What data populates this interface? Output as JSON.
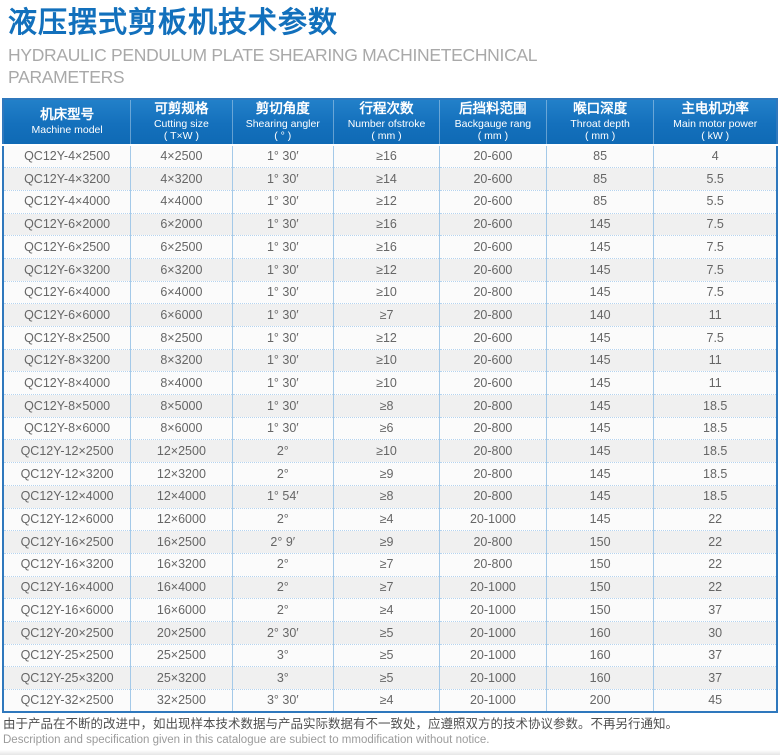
{
  "page": {
    "title": "液压摆式剪板机技术参数",
    "subtitle": "HYDRAULIC PENDULUM PLATE SHEARING MACHINETECHNICAL PARAMETERS"
  },
  "colors": {
    "title_blue": "#1270bc",
    "header_blue": "#1470bc",
    "table_border_blue": "#2f78bd",
    "column_divider_blue": "#a4c9e8",
    "row_alt_gray": "#f0f0f0",
    "body_text_gray": "#666666",
    "subtitle_gray": "#a9a9a9"
  },
  "table": {
    "columns": [
      {
        "zh": "机床型号",
        "en": "Machine model",
        "unit": ""
      },
      {
        "zh": "可剪规格",
        "en": "Cutting size",
        "unit": "( T×W )"
      },
      {
        "zh": "剪切角度",
        "en": "Shearing angler",
        "unit": "( ° )"
      },
      {
        "zh": "行程次数",
        "en": "Number ofstroke",
        "unit": "( mm )"
      },
      {
        "zh": "后挡料范围",
        "en": "Backgauge rang",
        "unit": "( mm )"
      },
      {
        "zh": "喉口深度",
        "en": "Throat depth",
        "unit": "( mm )"
      },
      {
        "zh": "主电机功率",
        "en": "Main motor power",
        "unit": "( kW )"
      }
    ],
    "rows": [
      [
        "QC12Y-4×2500",
        "4×2500",
        "1° 30′",
        "≥16",
        "20-600",
        "85",
        "4"
      ],
      [
        "QC12Y-4×3200",
        "4×3200",
        "1° 30′",
        "≥14",
        "20-600",
        "85",
        "5.5"
      ],
      [
        "QC12Y-4×4000",
        "4×4000",
        "1° 30′",
        "≥12",
        "20-600",
        "85",
        "5.5"
      ],
      [
        "QC12Y-6×2000",
        "6×2000",
        "1° 30′",
        "≥16",
        "20-600",
        "145",
        "7.5"
      ],
      [
        "QC12Y-6×2500",
        "6×2500",
        "1° 30′",
        "≥16",
        "20-600",
        "145",
        "7.5"
      ],
      [
        "QC12Y-6×3200",
        "6×3200",
        "1° 30′",
        "≥12",
        "20-600",
        "145",
        "7.5"
      ],
      [
        "QC12Y-6×4000",
        "6×4000",
        "1° 30′",
        "≥10",
        "20-800",
        "145",
        "7.5"
      ],
      [
        "QC12Y-6×6000",
        "6×6000",
        "1° 30′",
        "≥7",
        "20-800",
        "140",
        "11"
      ],
      [
        "QC12Y-8×2500",
        "8×2500",
        "1° 30′",
        "≥12",
        "20-600",
        "145",
        "7.5"
      ],
      [
        "QC12Y-8×3200",
        "8×3200",
        "1° 30′",
        "≥10",
        "20-600",
        "145",
        "11"
      ],
      [
        "QC12Y-8×4000",
        "8×4000",
        "1° 30′",
        "≥10",
        "20-600",
        "145",
        "11"
      ],
      [
        "QC12Y-8×5000",
        "8×5000",
        "1° 30′",
        "≥8",
        "20-800",
        "145",
        "18.5"
      ],
      [
        "QC12Y-8×6000",
        "8×6000",
        "1° 30′",
        "≥6",
        "20-800",
        "145",
        "18.5"
      ],
      [
        "QC12Y-12×2500",
        "12×2500",
        "2°",
        "≥10",
        "20-800",
        "145",
        "18.5"
      ],
      [
        "QC12Y-12×3200",
        "12×3200",
        "2°",
        "≥9",
        "20-800",
        "145",
        "18.5"
      ],
      [
        "QC12Y-12×4000",
        "12×4000",
        "1° 54′",
        "≥8",
        "20-800",
        "145",
        "18.5"
      ],
      [
        "QC12Y-12×6000",
        "12×6000",
        "2°",
        "≥4",
        "20-1000",
        "145",
        "22"
      ],
      [
        "QC12Y-16×2500",
        "16×2500",
        "2° 9′",
        "≥9",
        "20-800",
        "150",
        "22"
      ],
      [
        "QC12Y-16×3200",
        "16×3200",
        "2°",
        "≥7",
        "20-800",
        "150",
        "22"
      ],
      [
        "QC12Y-16×4000",
        "16×4000",
        "2°",
        "≥7",
        "20-1000",
        "150",
        "22"
      ],
      [
        "QC12Y-16×6000",
        "16×6000",
        "2°",
        "≥4",
        "20-1000",
        "150",
        "37"
      ],
      [
        "QC12Y-20×2500",
        "20×2500",
        "2° 30′",
        "≥5",
        "20-1000",
        "160",
        "30"
      ],
      [
        "QC12Y-25×2500",
        "25×2500",
        "3°",
        "≥5",
        "20-1000",
        "160",
        "37"
      ],
      [
        "QC12Y-25×3200",
        "25×3200",
        "3°",
        "≥5",
        "20-1000",
        "160",
        "37"
      ],
      [
        "QC12Y-32×2500",
        "32×2500",
        "3° 30′",
        "≥4",
        "20-1000",
        "200",
        "45"
      ]
    ]
  },
  "footer": {
    "line1_zh": "由于产品在不断的改进中，如出现样本技术数据与产品实际数据有不一致处，应遵照双方的技术协议参数。不再另行通知。",
    "line2_en": "Description and specification given in this catalogue are subiect to mmodification without notice."
  }
}
